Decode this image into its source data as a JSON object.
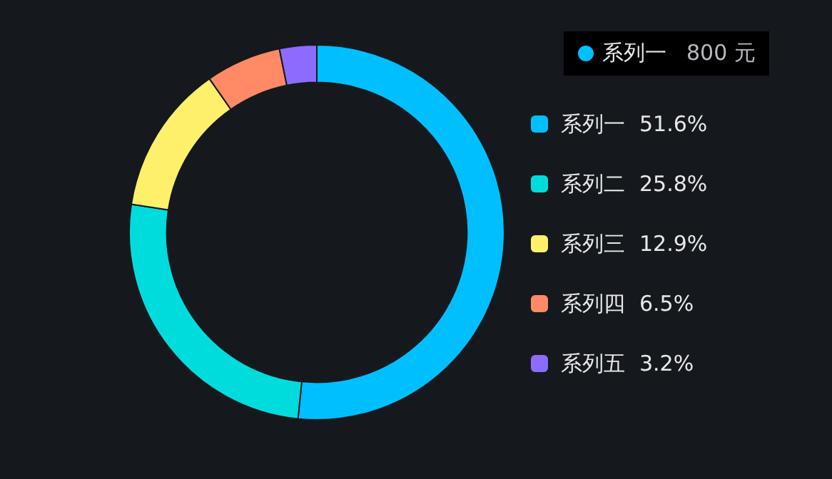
{
  "chart_data": {
    "type": "donut",
    "categories": [
      "系列一",
      "系列二",
      "系列三",
      "系列四",
      "系列五"
    ],
    "values": [
      51.6,
      25.8,
      12.9,
      6.5,
      3.2
    ],
    "value_labels": [
      "51.6%",
      "25.8%",
      "12.9%",
      "6.5%",
      "3.2%"
    ],
    "colors": [
      "#00bfff",
      "#00dcdc",
      "#fff06c",
      "#ff8a65",
      "#8c6cff"
    ],
    "annotations": [
      "800 元"
    ],
    "legend": "right"
  }
}
